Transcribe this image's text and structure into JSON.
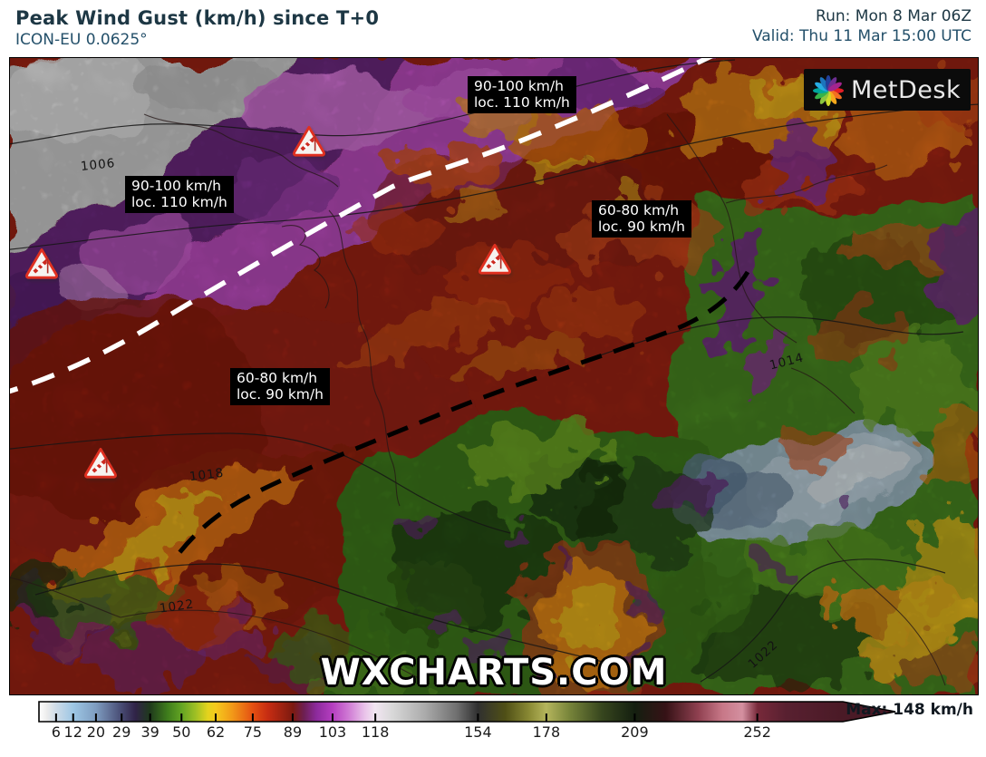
{
  "header": {
    "title": "Peak Wind Gust (km/h) since T+0",
    "model": "ICON-EU 0.0625°",
    "run": "Run: Mon 8 Mar 06Z",
    "valid": "Valid: Thu 11 Mar 15:00 UTC"
  },
  "map": {
    "watermark": "WXCHARTS.COM",
    "logo_text": "MetDesk",
    "gust_labels": [
      {
        "line1": "90-100 km/h",
        "line2": "loc. 110 km/h"
      },
      {
        "line1": "90-100 km/h",
        "line2": "loc. 110 km/h"
      },
      {
        "line1": "60-80 km/h",
        "line2": "loc. 90 km/h"
      },
      {
        "line1": "60-80 km/h",
        "line2": "loc. 90 km/h"
      }
    ],
    "pressure_labels": [
      "1006",
      "1014",
      "1018",
      "1022",
      "1022"
    ]
  },
  "legend": {
    "ticks": [
      "6",
      "12",
      "20",
      "29",
      "39",
      "50",
      "62",
      "75",
      "89",
      "103",
      "118",
      "154",
      "178",
      "209",
      "252"
    ],
    "max_label": "Max: 148 km/h",
    "gradient": [
      {
        "p": 0,
        "c": "#ffffff"
      },
      {
        "p": 1,
        "c": "#ececec"
      },
      {
        "p": 2.1,
        "c": "#cfdce8"
      },
      {
        "p": 4.3,
        "c": "#9cc6e4"
      },
      {
        "p": 7.1,
        "c": "#7e9cc0"
      },
      {
        "p": 10.3,
        "c": "#474a72"
      },
      {
        "p": 12,
        "c": "#302347"
      },
      {
        "p": 13.8,
        "c": "#1f3a1c"
      },
      {
        "p": 16,
        "c": "#3f7d1c"
      },
      {
        "p": 17.7,
        "c": "#62a323"
      },
      {
        "p": 19.5,
        "c": "#9fc024"
      },
      {
        "p": 21,
        "c": "#e3d31d"
      },
      {
        "p": 22,
        "c": "#f5c91d"
      },
      {
        "p": 24,
        "c": "#f29a18"
      },
      {
        "p": 26.6,
        "c": "#e44f12"
      },
      {
        "p": 28.5,
        "c": "#c62c12"
      },
      {
        "p": 31.6,
        "c": "#7c1a10"
      },
      {
        "p": 33,
        "c": "#6d2054"
      },
      {
        "p": 34.5,
        "c": "#8c2a9c"
      },
      {
        "p": 36.5,
        "c": "#b53ec0"
      },
      {
        "p": 38.5,
        "c": "#cf7ad4"
      },
      {
        "p": 40.5,
        "c": "#e9c2e9"
      },
      {
        "p": 41.8,
        "c": "#f2e6f2"
      },
      {
        "p": 44,
        "c": "#d8d8d8"
      },
      {
        "p": 48,
        "c": "#ababab"
      },
      {
        "p": 52,
        "c": "#6f6f6f"
      },
      {
        "p": 54.6,
        "c": "#303030"
      },
      {
        "p": 58,
        "c": "#4f4f16"
      },
      {
        "p": 61,
        "c": "#8a8a34"
      },
      {
        "p": 63.1,
        "c": "#b5b55c"
      },
      {
        "p": 66,
        "c": "#77843a"
      },
      {
        "p": 70,
        "c": "#37461e"
      },
      {
        "p": 74.1,
        "c": "#141f10"
      },
      {
        "p": 78,
        "c": "#361216"
      },
      {
        "p": 82,
        "c": "#8f4050"
      },
      {
        "p": 85,
        "c": "#c77787"
      },
      {
        "p": 87.5,
        "c": "#d490a0"
      },
      {
        "p": 89.4,
        "c": "#77293a"
      },
      {
        "p": 93,
        "c": "#582030"
      },
      {
        "p": 100,
        "c": "#4a1a26"
      }
    ]
  },
  "colors": {
    "header_text": "#1d3744",
    "header_blue": "#24506a",
    "label_box_bg": "#000000",
    "label_box_text": "#ffffff",
    "warning_red": "#e03020",
    "front_line_white": "#ffffff",
    "front_line_black": "#000000"
  }
}
